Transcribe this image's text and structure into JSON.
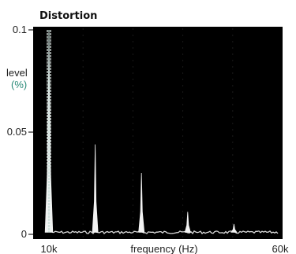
{
  "chart_data": {
    "type": "line",
    "title": "Distortion",
    "ylabel": "level",
    "ylabel_unit": "(%)",
    "xlabel": "frequency (Hz)",
    "xlim": [
      10000,
      60000
    ],
    "ylim": [
      0,
      0.1
    ],
    "x_ticks": [
      {
        "value": 10000,
        "label": "10k"
      },
      {
        "value": 60000,
        "label": "60k"
      }
    ],
    "y_ticks": [
      {
        "value": 0,
        "label": "0"
      },
      {
        "value": 0.05,
        "label": "0.05"
      },
      {
        "value": 0.1,
        "label": "0.1"
      }
    ],
    "grid": false,
    "background": "dark",
    "series": [
      {
        "x": [
          10000,
          20000,
          30000,
          40000,
          50000
        ],
        "values": [
          0.1,
          0.044,
          0.03,
          0.011,
          0.005
        ]
      }
    ],
    "noise_floor": 0.001
  },
  "colors": {
    "plot_background": "#000000",
    "trace": "#f2f2f2",
    "unit_label": "#2a8a78"
  }
}
